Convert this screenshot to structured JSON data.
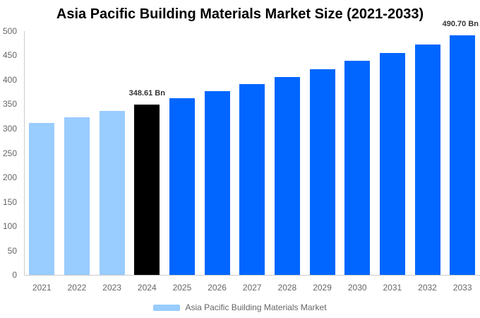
{
  "chart_data": {
    "type": "bar",
    "title": "Asia Pacific Building Materials Market Size (2021-2033)",
    "categories": [
      "2021",
      "2022",
      "2023",
      "2024",
      "2025",
      "2026",
      "2027",
      "2028",
      "2029",
      "2030",
      "2031",
      "2032",
      "2033"
    ],
    "series": [
      {
        "name": "Asia Pacific Building Materials Market",
        "values": [
          311.06,
          323.11,
          335.62,
          348.61,
          362.11,
          376.13,
          390.69,
          405.82,
          421.53,
          437.85,
          454.8,
          472.41,
          490.7
        ]
      }
    ],
    "unit": "Bn",
    "xlabel": "",
    "ylabel": "",
    "ylim": [
      0,
      500
    ],
    "ytick_step": 50,
    "yticks": [
      0,
      50,
      100,
      150,
      200,
      250,
      300,
      350,
      400,
      450,
      500
    ],
    "grid": false,
    "legend_position": "bottom-center",
    "data_labels": [
      {
        "category": "2024",
        "text": "348.61 Bn"
      },
      {
        "category": "2033",
        "text": "490.70 Bn"
      }
    ],
    "colors": {
      "historical_bar": "#99CCFF",
      "highlight_bar": "#000000",
      "forecast_bar": "#0066FF",
      "axis_line": "#CCCCCC",
      "tick_label": "#666666",
      "data_label": "#333333",
      "title": "#000000",
      "legend_text": "#666666"
    },
    "bar_color_roles": [
      "historical_bar",
      "historical_bar",
      "historical_bar",
      "highlight_bar",
      "forecast_bar",
      "forecast_bar",
      "forecast_bar",
      "forecast_bar",
      "forecast_bar",
      "forecast_bar",
      "forecast_bar",
      "forecast_bar",
      "forecast_bar"
    ]
  }
}
